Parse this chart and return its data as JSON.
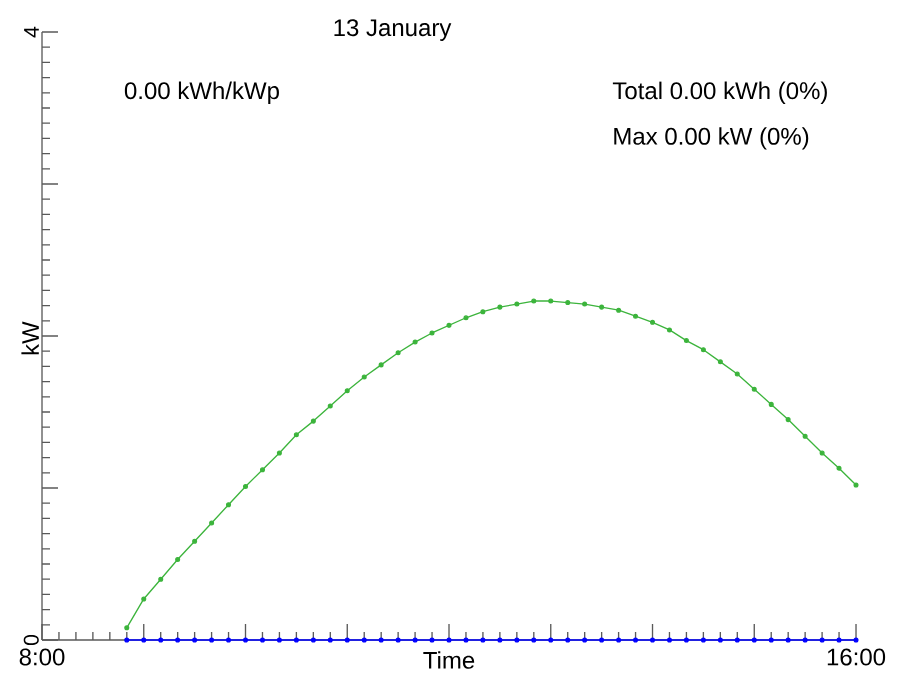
{
  "chart_data": {
    "type": "line",
    "title": "13 January",
    "xlabel": "Time",
    "ylabel": "kW",
    "annotations": [
      "0.00 kWh/kWp",
      "Total 0.00 kWh (0%)",
      "Max 0.00 kW (0%)"
    ],
    "xlim": [
      8,
      16
    ],
    "ylim": [
      0,
      4
    ],
    "xticks": [
      {
        "value": 8,
        "label": "8:00"
      },
      {
        "value": 9,
        "label": null
      },
      {
        "value": 10,
        "label": null
      },
      {
        "value": 11,
        "label": null
      },
      {
        "value": 12,
        "label": null
      },
      {
        "value": 13,
        "label": null
      },
      {
        "value": 14,
        "label": null
      },
      {
        "value": 15,
        "label": null
      },
      {
        "value": 16,
        "label": "16:00"
      }
    ],
    "yticks": [
      0,
      {
        "value": 1,
        "label": null
      },
      {
        "value": 2,
        "label": null
      },
      {
        "value": 3,
        "label": null
      },
      4
    ],
    "x": [
      8.833,
      9,
      9.167,
      9.333,
      9.5,
      9.667,
      9.833,
      10,
      10.167,
      10.333,
      10.5,
      10.667,
      10.833,
      11,
      11.167,
      11.333,
      11.5,
      11.667,
      11.833,
      12,
      12.167,
      12.333,
      12.5,
      12.667,
      12.833,
      13,
      13.167,
      13.333,
      13.5,
      13.667,
      13.833,
      14,
      14.167,
      14.333,
      14.5,
      14.667,
      14.833,
      15,
      15.167,
      15.333,
      15.5,
      15.667,
      15.833,
      16
    ],
    "series": [
      {
        "color": "#3cb43c",
        "values": [
          0.08,
          0.27,
          0.4,
          0.53,
          0.65,
          0.77,
          0.89,
          1.01,
          1.12,
          1.23,
          1.35,
          1.44,
          1.54,
          1.64,
          1.73,
          1.81,
          1.89,
          1.96,
          2.02,
          2.07,
          2.12,
          2.16,
          2.19,
          2.21,
          2.23,
          2.23,
          2.22,
          2.21,
          2.19,
          2.17,
          2.13,
          2.09,
          2.04,
          1.97,
          1.91,
          1.83,
          1.75,
          1.65,
          1.55,
          1.45,
          1.34,
          1.23,
          1.13,
          1.02
        ]
      },
      {
        "color": "#0000ff",
        "values": [
          0,
          0,
          0,
          0,
          0,
          0,
          0,
          0,
          0,
          0,
          0,
          0,
          0,
          0,
          0,
          0,
          0,
          0,
          0,
          0,
          0,
          0,
          0,
          0,
          0,
          0,
          0,
          0,
          0,
          0,
          0,
          0,
          0,
          0,
          0,
          0,
          0,
          0,
          0,
          0,
          0,
          0,
          0,
          0
        ]
      }
    ],
    "grid": false,
    "marker": "circle",
    "line_style": "solid"
  }
}
